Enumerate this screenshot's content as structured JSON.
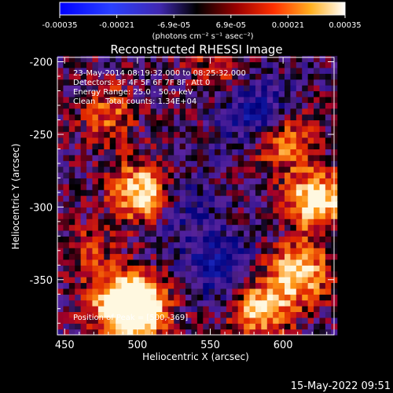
{
  "chart_data": {
    "type": "heatmap",
    "title": "Reconstructed RHESSI Image",
    "xlabel": "Heliocentric X (arcsec)",
    "ylabel": "Heliocentric Y (arcsec)",
    "xlim": [
      445,
      635
    ],
    "ylim": [
      -388,
      -197
    ],
    "x_ticks": [
      450,
      500,
      550,
      600
    ],
    "y_ticks": [
      -200,
      -250,
      -300,
      -350
    ],
    "colorbar": {
      "ticks": [
        "-0.00035",
        "-0.00021",
        "-6.9e-05",
        "6.9e-05",
        "0.00021",
        "0.00035"
      ],
      "range": [
        -0.00035,
        0.00035
      ],
      "units": "(photons cm⁻² s⁻¹ asec⁻²)"
    },
    "colors": {
      "background": "#000000",
      "neg_dark": "#00007a",
      "neg_mid": "#2a3fe6",
      "zero_purple": "#5a24a0",
      "warm_dark": "#a0002a",
      "warm_mid": "#e12800",
      "warm_bright": "#ff9a18",
      "warm_max": "#fff8e0"
    },
    "annotations": {
      "time_range": "23-May-2014 08:19:32.000 to 08:25:32.000",
      "detectors": "Detectors: 3F 4F 5F 6F 7F 8F, Att 0",
      "energy": "Energy Range: 25.0 - 50.0 keV",
      "clean": "Clean    Total counts: 1.34E+04",
      "peak": "Position of Peak = [500,-369]"
    },
    "sources": [
      {
        "x": 501,
        "y": -370,
        "intensity": 1.0
      },
      {
        "x": 488,
        "y": -366,
        "intensity": 0.85
      },
      {
        "x": 503,
        "y": -290,
        "intensity": 0.9
      },
      {
        "x": 623,
        "y": -295,
        "intensity": 0.95
      },
      {
        "x": 611,
        "y": -345,
        "intensity": 0.85
      },
      {
        "x": 585,
        "y": -370,
        "intensity": 0.75
      },
      {
        "x": 600,
        "y": -255,
        "intensity": 0.6
      },
      {
        "x": 480,
        "y": -235,
        "intensity": 0.45
      },
      {
        "x": 555,
        "y": -205,
        "intensity": 0.35
      },
      {
        "x": 465,
        "y": -330,
        "intensity": 0.3
      }
    ],
    "negative_regions": [
      {
        "x": 580,
        "y": -235,
        "depth": 0.6
      },
      {
        "x": 555,
        "y": -340,
        "depth": 0.55
      },
      {
        "x": 530,
        "y": -300,
        "depth": 0.35
      }
    ]
  },
  "footer": {
    "timestamp": "15-May-2022 09:51"
  }
}
